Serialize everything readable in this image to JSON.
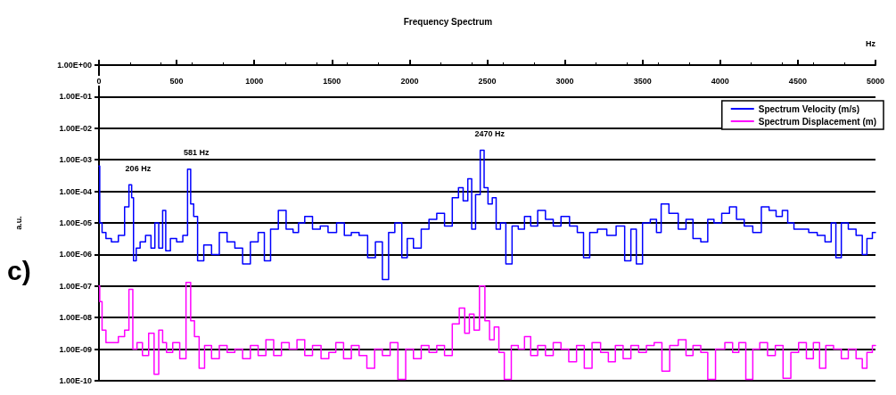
{
  "chart_data": {
    "type": "step",
    "title": "Frequency Spectrum",
    "xlabel": "Hz",
    "ylabel": "a.u.",
    "log": "y",
    "grid": "y",
    "legend": "top right",
    "marker": "none",
    "line_style": "solid",
    "xlim": [
      0,
      5000
    ],
    "xticks": [
      0,
      500,
      1000,
      1500,
      2000,
      2500,
      3000,
      3500,
      4000,
      4500,
      5000
    ],
    "ylim": [
      1e-10,
      1
    ],
    "yticks": [
      {
        "value": 1,
        "label": "1.00E+00"
      },
      {
        "value": 0.1,
        "label": "1.00E-01"
      },
      {
        "value": 0.01,
        "label": "1.00E-02"
      },
      {
        "value": 0.001,
        "label": "1.00E-03"
      },
      {
        "value": 0.0001,
        "label": "1.00E-04"
      },
      {
        "value": 1e-05,
        "label": "1.00E-05"
      },
      {
        "value": 1e-06,
        "label": "1.00E-06"
      },
      {
        "value": 1e-07,
        "label": "1.00E-07"
      },
      {
        "value": 1e-08,
        "label": "1.00E-08"
      },
      {
        "value": 1e-09,
        "label": "1.00E-09"
      },
      {
        "value": 1e-10,
        "label": "1.00E-10"
      }
    ],
    "annotations": [
      "c)",
      {
        "text": "206 Hz",
        "x": 206,
        "y": 0.00016
      },
      {
        "text": "581 Hz",
        "x": 581,
        "y": 0.0005
      },
      {
        "text": "2470 Hz",
        "x": 2470,
        "y": 0.002
      }
    ],
    "series": [
      {
        "name": "Spectrum Velocity (m/s)",
        "color": "#0000ff",
        "x": [
          0,
          10,
          30,
          60,
          100,
          150,
          180,
          206,
          215,
          230,
          250,
          280,
          320,
          350,
          370,
          400,
          420,
          440,
          480,
          520,
          560,
          581,
          600,
          620,
          650,
          700,
          750,
          800,
          850,
          900,
          950,
          1000,
          1050,
          1080,
          1130,
          1180,
          1230,
          1270,
          1300,
          1350,
          1400,
          1450,
          1500,
          1560,
          1600,
          1650,
          1700,
          1760,
          1800,
          1850,
          1880,
          1930,
          1970,
          2000,
          2050,
          2100,
          2150,
          2200,
          2250,
          2300,
          2330,
          2360,
          2390,
          2410,
          2440,
          2470,
          2490,
          2520,
          2545,
          2570,
          2600,
          2640,
          2680,
          2720,
          2760,
          2800,
          2850,
          2900,
          2950,
          3000,
          3060,
          3100,
          3140,
          3180,
          3240,
          3300,
          3360,
          3410,
          3440,
          3480,
          3520,
          3580,
          3600,
          3640,
          3700,
          3760,
          3800,
          3850,
          3900,
          3940,
          3980,
          4040,
          4080,
          4130,
          4180,
          4240,
          4290,
          4340,
          4380,
          4420,
          4450,
          4500,
          4540,
          4600,
          4650,
          4700,
          4730,
          4760,
          4800,
          4850,
          4900,
          4930,
          4960,
          5000
        ],
        "values": [
          0.00063,
          1e-05,
          5e-06,
          3.2e-06,
          2.5e-06,
          4e-06,
          3.2e-05,
          0.00016,
          6.3e-05,
          6.3e-07,
          1.6e-06,
          2.5e-06,
          4e-06,
          1.6e-06,
          1e-05,
          1.6e-06,
          2.5e-05,
          1.3e-06,
          3.2e-06,
          2.5e-06,
          4e-06,
          0.0005,
          4e-05,
          1.6e-05,
          6.3e-07,
          2e-06,
          1e-06,
          5e-06,
          2.5e-06,
          1.6e-06,
          5e-07,
          2.5e-06,
          5e-06,
          6.3e-07,
          6.3e-06,
          2.5e-05,
          6.3e-06,
          5e-06,
          1e-05,
          1.6e-05,
          6.3e-06,
          7.9e-06,
          5e-06,
          1e-05,
          4e-06,
          5e-06,
          4e-06,
          7.9e-07,
          2.5e-06,
          1.6e-07,
          5e-06,
          1e-05,
          7.9e-07,
          3.2e-06,
          1.6e-06,
          6.3e-06,
          1.3e-05,
          2e-05,
          7.9e-06,
          6.3e-05,
          0.00013,
          5e-05,
          0.00025,
          6.3e-06,
          7.9e-05,
          0.002,
          0.00013,
          4e-05,
          6.3e-05,
          6.3e-06,
          1e-05,
          5e-07,
          7.9e-06,
          6.3e-06,
          1.6e-05,
          7.9e-06,
          2.5e-05,
          1.3e-05,
          7.9e-06,
          1.6e-05,
          7.9e-06,
          5e-06,
          7.9e-07,
          5e-06,
          6.3e-06,
          4e-06,
          7.9e-06,
          6.3e-07,
          6.3e-06,
          5e-07,
          1e-05,
          1.3e-05,
          5e-06,
          4e-05,
          2e-05,
          6.3e-06,
          1.3e-05,
          3.2e-06,
          2.5e-06,
          1.3e-05,
          1e-05,
          2e-05,
          3.2e-05,
          1.3e-05,
          7.9e-06,
          5e-06,
          3.2e-05,
          2.5e-05,
          1.6e-05,
          2.5e-05,
          1e-05,
          6.3e-06,
          6.3e-06,
          5e-06,
          4e-06,
          2.5e-06,
          1e-05,
          7.9e-07,
          1e-05,
          6.3e-06,
          4e-06,
          1e-06,
          3.2e-06,
          5e-06
        ]
      },
      {
        "name": "Spectrum Displacement (m)",
        "color": "#ff00ff",
        "x": [
          0,
          10,
          30,
          60,
          100,
          150,
          180,
          206,
          230,
          260,
          300,
          340,
          370,
          400,
          420,
          450,
          500,
          540,
          581,
          600,
          630,
          660,
          700,
          750,
          800,
          850,
          900,
          950,
          1000,
          1050,
          1100,
          1150,
          1200,
          1250,
          1300,
          1350,
          1400,
          1460,
          1500,
          1550,
          1600,
          1650,
          1700,
          1750,
          1800,
          1850,
          1900,
          1950,
          2000,
          2050,
          2100,
          2150,
          2200,
          2250,
          2300,
          2340,
          2370,
          2400,
          2430,
          2470,
          2500,
          2530,
          2560,
          2590,
          2630,
          2680,
          2720,
          2760,
          2800,
          2850,
          2900,
          2950,
          3000,
          3050,
          3100,
          3150,
          3200,
          3260,
          3300,
          3350,
          3400,
          3450,
          3500,
          3550,
          3600,
          3650,
          3700,
          3760,
          3800,
          3850,
          3900,
          3940,
          4000,
          4060,
          4100,
          4140,
          4190,
          4230,
          4280,
          4330,
          4380,
          4430,
          4480,
          4530,
          4580,
          4620,
          4660,
          4700,
          4760,
          4800,
          4850,
          4900,
          4930,
          4960,
          5000
        ],
        "values": [
          1e-07,
          3.2e-08,
          4e-09,
          1.6e-09,
          1.6e-09,
          2.5e-09,
          4e-09,
          7.9e-08,
          1e-09,
          1.6e-09,
          6.3e-10,
          3.2e-09,
          1.6e-10,
          4e-09,
          1.6e-09,
          7.9e-10,
          1.6e-09,
          5e-10,
          1.3e-07,
          7.9e-09,
          2.5e-09,
          2.5e-10,
          1.3e-09,
          5e-10,
          1.3e-09,
          7.9e-10,
          1e-09,
          5e-10,
          1.3e-09,
          6.3e-10,
          2e-09,
          6.3e-10,
          1.6e-09,
          1e-09,
          2e-09,
          6.3e-10,
          1.3e-09,
          5e-10,
          7.9e-10,
          1.6e-09,
          5e-10,
          1.3e-09,
          6.3e-10,
          2.5e-10,
          1e-09,
          6.3e-10,
          1.6e-09,
          1.1e-10,
          1e-09,
          5e-10,
          1.3e-09,
          7.9e-10,
          1.3e-09,
          6.3e-10,
          6.3e-09,
          2e-08,
          3.2e-09,
          1.3e-08,
          4e-09,
          1e-07,
          7.9e-09,
          2e-09,
          5e-09,
          7.9e-10,
          1.1e-10,
          1.3e-09,
          1e-09,
          2.5e-09,
          6.3e-10,
          1.3e-09,
          6.3e-10,
          1.6e-09,
          1e-09,
          4e-10,
          1.3e-09,
          2.5e-10,
          1.6e-09,
          7.9e-10,
          4e-10,
          1.3e-09,
          5e-10,
          1.3e-09,
          7.9e-10,
          1.3e-09,
          1.6e-09,
          2e-10,
          1.3e-09,
          2e-09,
          6.3e-10,
          1.3e-09,
          7.9e-10,
          1.1e-10,
          1e-09,
          1.6e-09,
          7.9e-10,
          1.6e-09,
          1.1e-10,
          1e-09,
          1.6e-09,
          6.3e-10,
          1.3e-09,
          1.2e-10,
          7.9e-10,
          1.6e-09,
          5e-10,
          1.6e-09,
          2.5e-10,
          1.3e-09,
          1e-09,
          5e-10,
          1e-09,
          5e-10,
          2.5e-10,
          7.9e-10,
          1.3e-09
        ]
      }
    ]
  }
}
